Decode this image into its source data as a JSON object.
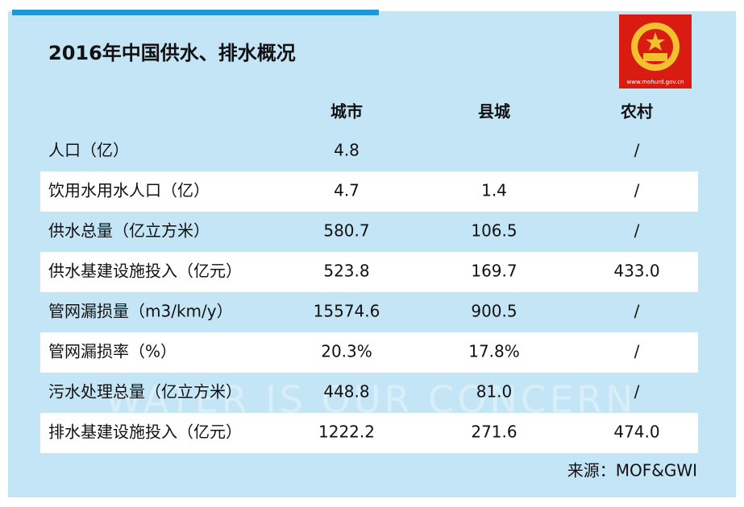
{
  "header": {
    "title": "2016年中国供水、排水概况",
    "emblem_caption": "www.mohurd.gov.cn"
  },
  "watermark": "WATER IS OUR CONCERN",
  "table": {
    "columns": [
      "城市",
      "县城",
      "农村"
    ],
    "rows": [
      [
        "人口（亿）",
        "4.8",
        null,
        "/"
      ],
      [
        "饮用水用水人口（亿）",
        "4.7",
        "1.4",
        "/"
      ],
      [
        "供水总量（亿立方米）",
        "580.7",
        "106.5",
        "/"
      ],
      [
        "供水基建设施投入（亿元）",
        "523.8",
        "169.7",
        "433.0"
      ],
      [
        "管网漏损量（m3/km/y）",
        "15574.6",
        "900.5",
        "/"
      ],
      [
        "管网漏损率（%）",
        "20.3%",
        "17.8%",
        "/"
      ],
      [
        "污水处理总量（亿立方米）",
        "448.8",
        "81.0",
        "/"
      ],
      [
        "排水基建设施投入（亿元）",
        "1222.2",
        "271.6",
        "474.0"
      ]
    ]
  },
  "footer": {
    "source": "来源：MOF&GWI"
  }
}
